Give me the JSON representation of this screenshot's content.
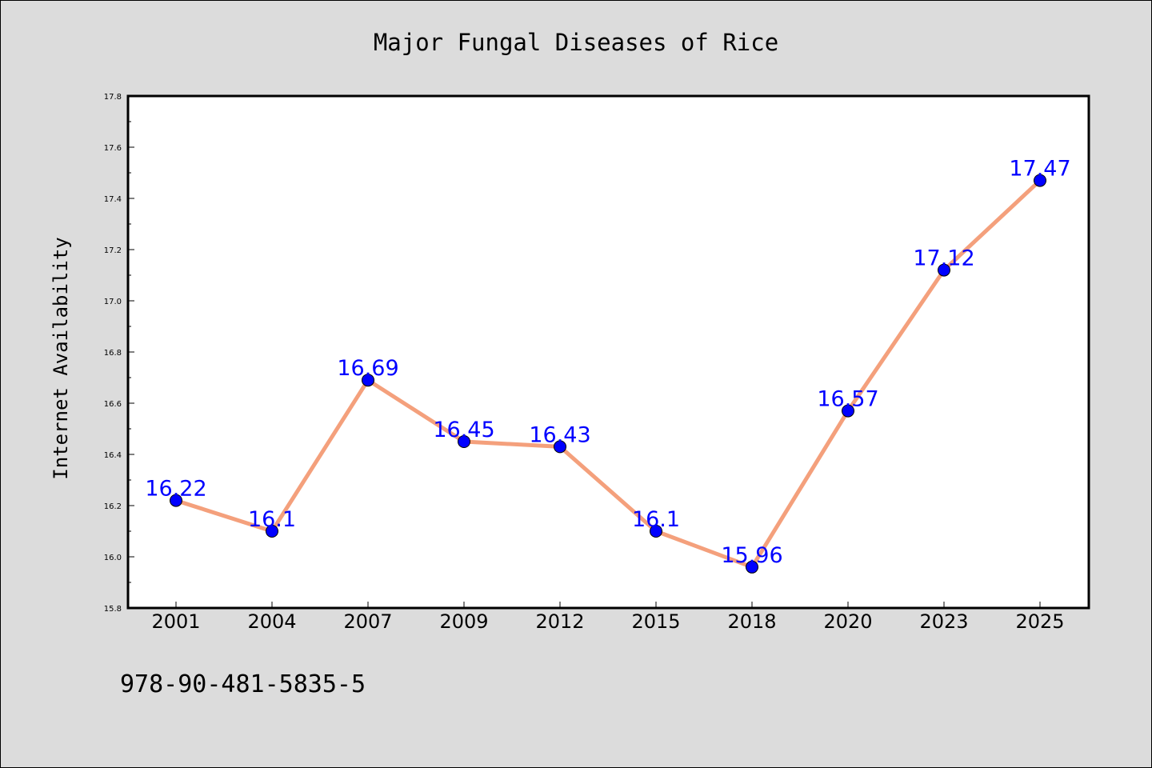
{
  "chart_data": {
    "type": "line",
    "title": "Major Fungal Diseases of Rice",
    "xlabel": "",
    "ylabel": "Internet Availability",
    "categories": [
      "2001",
      "2004",
      "2007",
      "2009",
      "2012",
      "2015",
      "2018",
      "2020",
      "2023",
      "2025"
    ],
    "series": [
      {
        "values": [
          16.22,
          16.1,
          16.69,
          16.45,
          16.43,
          16.1,
          15.96,
          16.57,
          17.12,
          17.47
        ],
        "data_labels": [
          "16.22",
          "16.1",
          "16.69",
          "16.45",
          "16.43",
          "16.1",
          "15.96",
          "16.57",
          "17.12",
          "17.47"
        ]
      }
    ],
    "ylim": [
      15.8,
      17.8
    ],
    "yticks": [
      "15.8",
      "16.0",
      "16.2",
      "16.4",
      "16.6",
      "16.8",
      "17.0",
      "17.2",
      "17.4",
      "17.6",
      "17.8"
    ],
    "grid": false,
    "legend": "none",
    "colors": {
      "background": "#dcdcdc",
      "plot_background": "#ffffff",
      "line": "#f4a07c",
      "marker": "#0000ff",
      "data_label": "#0000ff"
    }
  },
  "footer": {
    "isbn": "978-90-481-5835-5"
  }
}
